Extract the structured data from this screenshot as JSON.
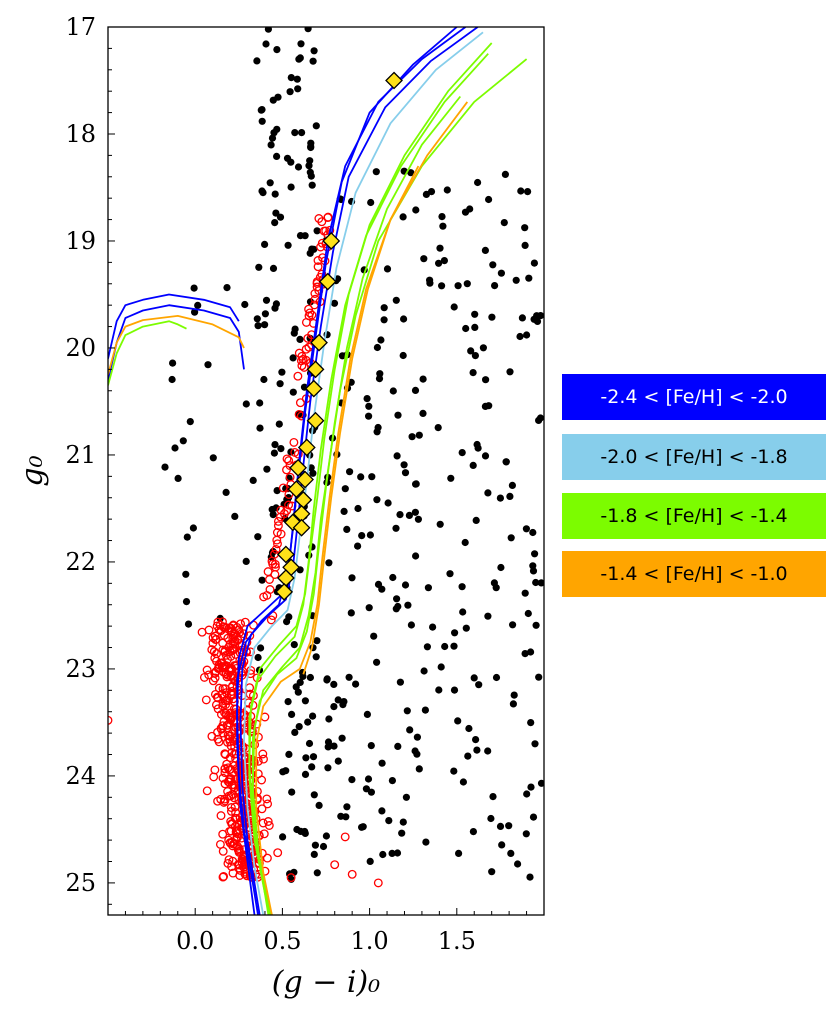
{
  "chart_data": {
    "type": "scatter",
    "xlabel": "(g − i)₀",
    "ylabel": "g₀",
    "xlim": [
      -0.5,
      2.0
    ],
    "ylim": [
      25.3,
      17.0
    ],
    "x_ticks": [
      0.0,
      0.5,
      1.0,
      1.5
    ],
    "x_tick_labels": [
      "0.0",
      "0.5",
      "1.0",
      "1.5"
    ],
    "y_ticks": [
      17,
      18,
      19,
      20,
      21,
      22,
      23,
      24,
      25
    ],
    "y_tick_labels": [
      "17",
      "18",
      "19",
      "20",
      "21",
      "22",
      "23",
      "24",
      "25"
    ],
    "grid": false,
    "legend_position": "right",
    "legend": [
      {
        "label": "-2.4 < [Fe/H] < -2.0",
        "color": "#0000ff",
        "text_color": "#ffffff"
      },
      {
        "label": "-2.0 < [Fe/H] < -1.8",
        "color": "#87ceeb",
        "text_color": "#000000"
      },
      {
        "label": "-1.8 < [Fe/H] < -1.4",
        "color": "#7cfc00",
        "text_color": "#000000"
      },
      {
        "label": "-1.4 < [Fe/H] < -1.0",
        "color": "#ffa500",
        "text_color": "#000000"
      }
    ],
    "members": [
      [
        1.14,
        17.5
      ],
      [
        0.78,
        19.0
      ],
      [
        0.76,
        19.38
      ],
      [
        0.71,
        19.95
      ],
      [
        0.69,
        20.2
      ],
      [
        0.68,
        20.38
      ],
      [
        0.69,
        20.68
      ],
      [
        0.64,
        20.93
      ],
      [
        0.59,
        21.12
      ],
      [
        0.63,
        21.23
      ],
      [
        0.58,
        21.32
      ],
      [
        0.62,
        21.42
      ],
      [
        0.61,
        21.55
      ],
      [
        0.56,
        21.63
      ],
      [
        0.61,
        21.68
      ],
      [
        0.52,
        21.93
      ],
      [
        0.55,
        22.05
      ],
      [
        0.52,
        22.15
      ],
      [
        0.51,
        22.28
      ]
    ],
    "isochrones": [
      {
        "group": 0,
        "points": [
          [
            -0.5,
            20.3
          ],
          [
            -0.45,
            19.95
          ],
          [
            -0.4,
            19.72
          ],
          [
            -0.3,
            19.65
          ],
          [
            -0.15,
            19.6
          ],
          [
            0.05,
            19.65
          ],
          [
            0.2,
            19.72
          ],
          [
            0.25,
            19.85
          ],
          [
            0.28,
            20.2
          ]
        ]
      },
      {
        "group": 0,
        "points": [
          [
            -0.5,
            20.1
          ],
          [
            -0.45,
            19.75
          ],
          [
            -0.4,
            19.6
          ],
          [
            -0.3,
            19.55
          ],
          [
            -0.15,
            19.5
          ],
          [
            0.05,
            19.55
          ],
          [
            0.2,
            19.62
          ],
          [
            0.25,
            19.75
          ]
        ]
      },
      {
        "group": 2,
        "points": [
          [
            -0.5,
            20.35
          ],
          [
            -0.45,
            20.05
          ],
          [
            -0.4,
            19.88
          ],
          [
            -0.3,
            19.8
          ],
          [
            -0.15,
            19.75
          ],
          [
            -0.1,
            19.78
          ],
          [
            -0.05,
            19.82
          ]
        ]
      },
      {
        "group": 3,
        "points": [
          [
            -0.5,
            20.25
          ],
          [
            -0.45,
            19.95
          ],
          [
            -0.4,
            19.8
          ],
          [
            -0.3,
            19.74
          ],
          [
            -0.1,
            19.7
          ],
          [
            0.1,
            19.78
          ],
          [
            0.25,
            19.9
          ],
          [
            0.28,
            20.0
          ]
        ]
      },
      {
        "group": 0,
        "points": [
          [
            1.55,
            17.0
          ],
          [
            1.3,
            17.3
          ],
          [
            1.05,
            17.7
          ],
          [
            0.86,
            18.3
          ],
          [
            0.76,
            19.0
          ],
          [
            0.7,
            19.7
          ],
          [
            0.64,
            20.4
          ],
          [
            0.6,
            21.0
          ],
          [
            0.57,
            21.5
          ],
          [
            0.54,
            22.0
          ],
          [
            0.5,
            22.3
          ],
          [
            0.4,
            22.45
          ],
          [
            0.3,
            22.6
          ],
          [
            0.25,
            22.9
          ],
          [
            0.24,
            23.4
          ],
          [
            0.25,
            24.0
          ],
          [
            0.28,
            24.5
          ],
          [
            0.33,
            25.0
          ],
          [
            0.36,
            25.3
          ]
        ]
      },
      {
        "group": 0,
        "points": [
          [
            1.62,
            17.0
          ],
          [
            1.35,
            17.32
          ],
          [
            1.09,
            17.75
          ],
          [
            0.88,
            18.4
          ],
          [
            0.79,
            19.1
          ],
          [
            0.72,
            19.8
          ],
          [
            0.66,
            20.5
          ],
          [
            0.62,
            21.1
          ],
          [
            0.59,
            21.6
          ],
          [
            0.56,
            22.05
          ],
          [
            0.52,
            22.35
          ],
          [
            0.42,
            22.5
          ],
          [
            0.32,
            22.68
          ],
          [
            0.27,
            23.0
          ],
          [
            0.26,
            23.5
          ],
          [
            0.27,
            24.1
          ],
          [
            0.3,
            24.6
          ],
          [
            0.35,
            25.1
          ],
          [
            0.37,
            25.3
          ]
        ]
      },
      {
        "group": 0,
        "points": [
          [
            1.5,
            17.0
          ],
          [
            1.25,
            17.35
          ],
          [
            1.0,
            17.8
          ],
          [
            0.84,
            18.45
          ],
          [
            0.75,
            19.2
          ],
          [
            0.69,
            19.9
          ],
          [
            0.63,
            20.6
          ],
          [
            0.59,
            21.2
          ],
          [
            0.56,
            21.7
          ],
          [
            0.53,
            22.1
          ],
          [
            0.48,
            22.4
          ],
          [
            0.38,
            22.55
          ],
          [
            0.29,
            22.75
          ],
          [
            0.24,
            23.1
          ],
          [
            0.24,
            23.7
          ],
          [
            0.26,
            24.3
          ],
          [
            0.3,
            24.8
          ],
          [
            0.34,
            25.3
          ]
        ]
      },
      {
        "group": 1,
        "points": [
          [
            1.65,
            17.05
          ],
          [
            1.38,
            17.4
          ],
          [
            1.12,
            17.9
          ],
          [
            0.92,
            18.55
          ],
          [
            0.81,
            19.25
          ],
          [
            0.74,
            19.95
          ],
          [
            0.68,
            20.65
          ],
          [
            0.64,
            21.25
          ],
          [
            0.6,
            21.75
          ],
          [
            0.57,
            22.15
          ],
          [
            0.53,
            22.45
          ],
          [
            0.44,
            22.6
          ],
          [
            0.34,
            22.8
          ],
          [
            0.29,
            23.15
          ],
          [
            0.28,
            23.7
          ],
          [
            0.3,
            24.3
          ],
          [
            0.34,
            24.85
          ],
          [
            0.39,
            25.3
          ]
        ]
      },
      {
        "group": 2,
        "points": [
          [
            1.7,
            17.15
          ],
          [
            1.45,
            17.6
          ],
          [
            1.2,
            18.2
          ],
          [
            1.0,
            18.85
          ],
          [
            0.88,
            19.5
          ],
          [
            0.8,
            20.2
          ],
          [
            0.74,
            20.85
          ],
          [
            0.7,
            21.4
          ],
          [
            0.66,
            21.9
          ],
          [
            0.63,
            22.3
          ],
          [
            0.58,
            22.6
          ],
          [
            0.48,
            22.78
          ],
          [
            0.37,
            23.0
          ],
          [
            0.32,
            23.35
          ],
          [
            0.31,
            23.9
          ],
          [
            0.34,
            24.5
          ],
          [
            0.39,
            25.0
          ],
          [
            0.43,
            25.3
          ]
        ]
      },
      {
        "group": 2,
        "points": [
          [
            1.68,
            17.25
          ],
          [
            1.43,
            17.7
          ],
          [
            1.18,
            18.3
          ],
          [
            0.98,
            18.95
          ],
          [
            0.86,
            19.6
          ],
          [
            0.78,
            20.3
          ],
          [
            0.72,
            20.95
          ],
          [
            0.68,
            21.5
          ],
          [
            0.65,
            22.0
          ],
          [
            0.62,
            22.4
          ],
          [
            0.57,
            22.7
          ],
          [
            0.46,
            22.88
          ],
          [
            0.36,
            23.1
          ],
          [
            0.31,
            23.45
          ],
          [
            0.31,
            24.0
          ],
          [
            0.34,
            24.6
          ],
          [
            0.4,
            25.1
          ],
          [
            0.44,
            25.3
          ]
        ]
      },
      {
        "group": 2,
        "points": [
          [
            1.9,
            17.3
          ],
          [
            1.6,
            17.7
          ],
          [
            1.3,
            18.3
          ],
          [
            1.05,
            19.0
          ],
          [
            0.92,
            19.7
          ],
          [
            0.83,
            20.4
          ],
          [
            0.77,
            21.05
          ],
          [
            0.72,
            21.6
          ],
          [
            0.69,
            22.1
          ],
          [
            0.65,
            22.5
          ],
          [
            0.6,
            22.8
          ],
          [
            0.5,
            22.98
          ],
          [
            0.39,
            23.2
          ],
          [
            0.34,
            23.55
          ],
          [
            0.33,
            24.1
          ],
          [
            0.36,
            24.7
          ],
          [
            0.42,
            25.2
          ],
          [
            0.44,
            25.3
          ]
        ]
      },
      {
        "group": 2,
        "points": [
          [
            1.52,
            17.65
          ],
          [
            1.3,
            18.1
          ],
          [
            1.1,
            18.7
          ],
          [
            0.96,
            19.35
          ],
          [
            0.87,
            20.0
          ],
          [
            0.8,
            20.7
          ],
          [
            0.75,
            21.3
          ],
          [
            0.71,
            21.85
          ],
          [
            0.68,
            22.3
          ],
          [
            0.64,
            22.65
          ],
          [
            0.58,
            22.9
          ],
          [
            0.47,
            23.05
          ],
          [
            0.37,
            23.3
          ],
          [
            0.33,
            23.65
          ],
          [
            0.33,
            24.2
          ],
          [
            0.37,
            24.8
          ],
          [
            0.42,
            25.3
          ]
        ]
      },
      {
        "group": 3,
        "points": [
          [
            1.56,
            17.7
          ],
          [
            1.33,
            18.2
          ],
          [
            1.12,
            18.8
          ],
          [
            0.98,
            19.45
          ],
          [
            0.89,
            20.1
          ],
          [
            0.82,
            20.8
          ],
          [
            0.77,
            21.4
          ],
          [
            0.73,
            21.95
          ],
          [
            0.7,
            22.4
          ],
          [
            0.66,
            22.75
          ],
          [
            0.6,
            23.0
          ],
          [
            0.49,
            23.12
          ],
          [
            0.39,
            23.35
          ],
          [
            0.35,
            23.7
          ],
          [
            0.35,
            24.3
          ],
          [
            0.39,
            24.9
          ],
          [
            0.44,
            25.3
          ]
        ]
      },
      {
        "group": 3,
        "points": [
          [
            1.28,
            18.3
          ],
          [
            1.12,
            18.8
          ],
          [
            0.99,
            19.45
          ],
          [
            0.9,
            20.1
          ],
          [
            0.83,
            20.8
          ],
          [
            0.78,
            21.4
          ],
          [
            0.74,
            21.95
          ],
          [
            0.71,
            22.4
          ],
          [
            0.67,
            22.8
          ],
          [
            0.62,
            23.05
          ]
        ]
      }
    ]
  }
}
